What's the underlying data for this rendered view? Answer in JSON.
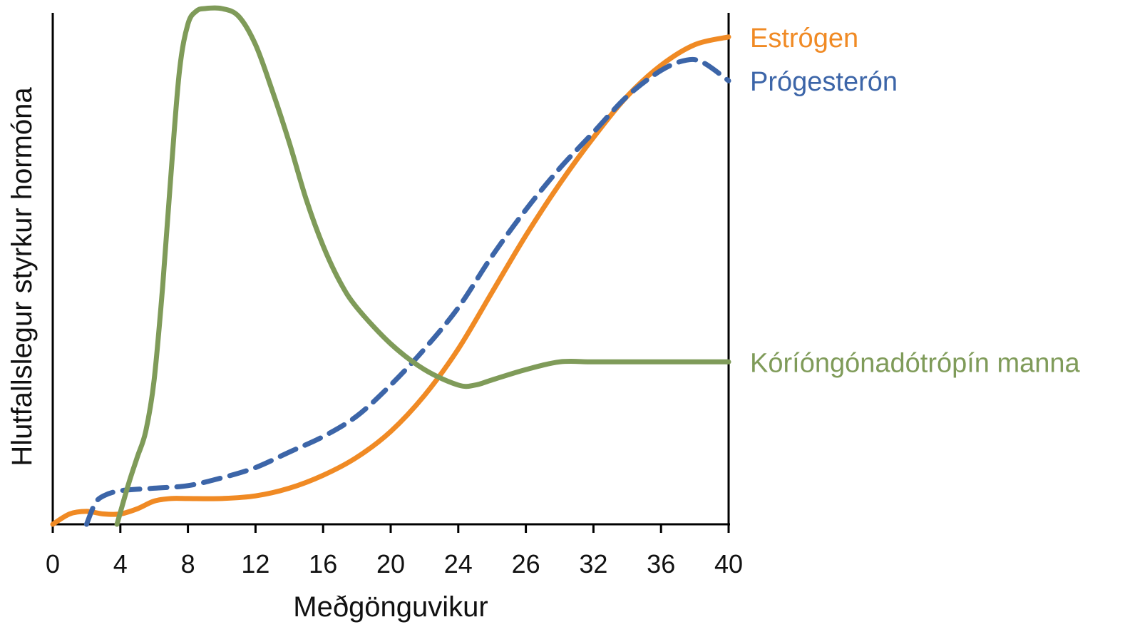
{
  "chart_data": {
    "type": "line",
    "xlabel": "Meðgönguvikur",
    "ylabel": "Hlutfallslegur styrkur hormóna",
    "x_tick_labels": [
      "0",
      "4",
      "8",
      "12",
      "16",
      "20",
      "24",
      "26",
      "32",
      "36",
      "40"
    ],
    "xlim": [
      0,
      40
    ],
    "ylim": [
      0,
      100
    ],
    "y_tick_labels": [],
    "grid": false,
    "legend": "inline labels at right end of each line",
    "series": [
      {
        "name": "Estrógen",
        "color": "#F08A24",
        "dash": "solid",
        "x": [
          0,
          1,
          2,
          3,
          4,
          5,
          6,
          7,
          8,
          10,
          12,
          14,
          16,
          18,
          20,
          22,
          24,
          26,
          28,
          30,
          32,
          34,
          36,
          38,
          40
        ],
        "y": [
          0,
          2,
          2.5,
          2,
          2,
          3,
          4.5,
          5,
          5,
          5,
          5.5,
          7,
          9.5,
          13,
          18,
          25,
          34,
          45,
          56,
          66,
          75,
          83,
          89,
          93,
          94.5
        ]
      },
      {
        "name": "Prógesterón",
        "color": "#3C65A8",
        "dash": "dashed",
        "x": [
          2,
          2.5,
          3,
          4,
          6,
          8,
          10,
          12,
          14,
          16,
          18,
          20,
          22,
          24,
          26,
          28,
          30,
          32,
          34,
          36,
          37.5,
          38.5,
          40
        ],
        "y": [
          0,
          4,
          5.5,
          6.5,
          7,
          7.5,
          9,
          11,
          14,
          17,
          21,
          27,
          34,
          42,
          52,
          61,
          69,
          76,
          83,
          88,
          90,
          89.5,
          86
        ]
      },
      {
        "name": "Kóríóngónadótrópín manna",
        "color": "#7F9B59",
        "dash": "solid",
        "x": [
          3.8,
          4.5,
          5,
          5.5,
          6,
          6.5,
          7,
          7.5,
          8,
          8.5,
          9,
          10,
          11,
          12,
          13,
          14,
          15,
          16,
          17,
          18,
          20,
          22,
          24,
          25,
          26,
          28,
          30,
          32,
          35,
          38,
          40
        ],
        "y": [
          0,
          8,
          13,
          18,
          28,
          46,
          68,
          88,
          97,
          99.5,
          100,
          100,
          98.5,
          93,
          84,
          74,
          63,
          54,
          47,
          42,
          35,
          30,
          27,
          27,
          28,
          30,
          31.5,
          31.5,
          31.5,
          31.5,
          31.5
        ]
      }
    ]
  }
}
